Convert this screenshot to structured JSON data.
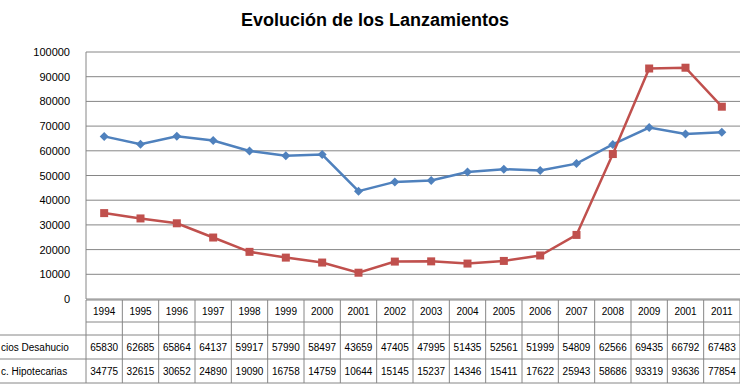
{
  "chart_data": {
    "type": "line",
    "title": "Evolución de los Lanzamientos",
    "categories": [
      "1994",
      "1995",
      "1996",
      "1997",
      "1998",
      "1999",
      "2000",
      "2001",
      "2002",
      "2003",
      "2004",
      "2005",
      "2006",
      "2007",
      "2008",
      "2009",
      "2001",
      "2011"
    ],
    "series": [
      {
        "name": "cios Desahucio",
        "color": "#4f81bd",
        "marker": "diamond",
        "values": [
          65830,
          62685,
          65864,
          64137,
          59917,
          57990,
          58497,
          43659,
          47405,
          47995,
          51435,
          52561,
          51999,
          54809,
          62566,
          69435,
          66792,
          67483
        ]
      },
      {
        "name": "c. Hipotecarias",
        "color": "#c0504d",
        "marker": "square",
        "values": [
          34775,
          32615,
          30652,
          24890,
          19090,
          16758,
          14759,
          10644,
          15145,
          15237,
          14346,
          15411,
          17622,
          25943,
          58686,
          93319,
          93636,
          77854
        ]
      }
    ],
    "ylim": [
      0,
      100000
    ],
    "yticks": [
      0,
      10000,
      20000,
      30000,
      40000,
      50000,
      60000,
      70000,
      80000,
      90000,
      100000
    ],
    "grid": true,
    "data_labels": true
  }
}
